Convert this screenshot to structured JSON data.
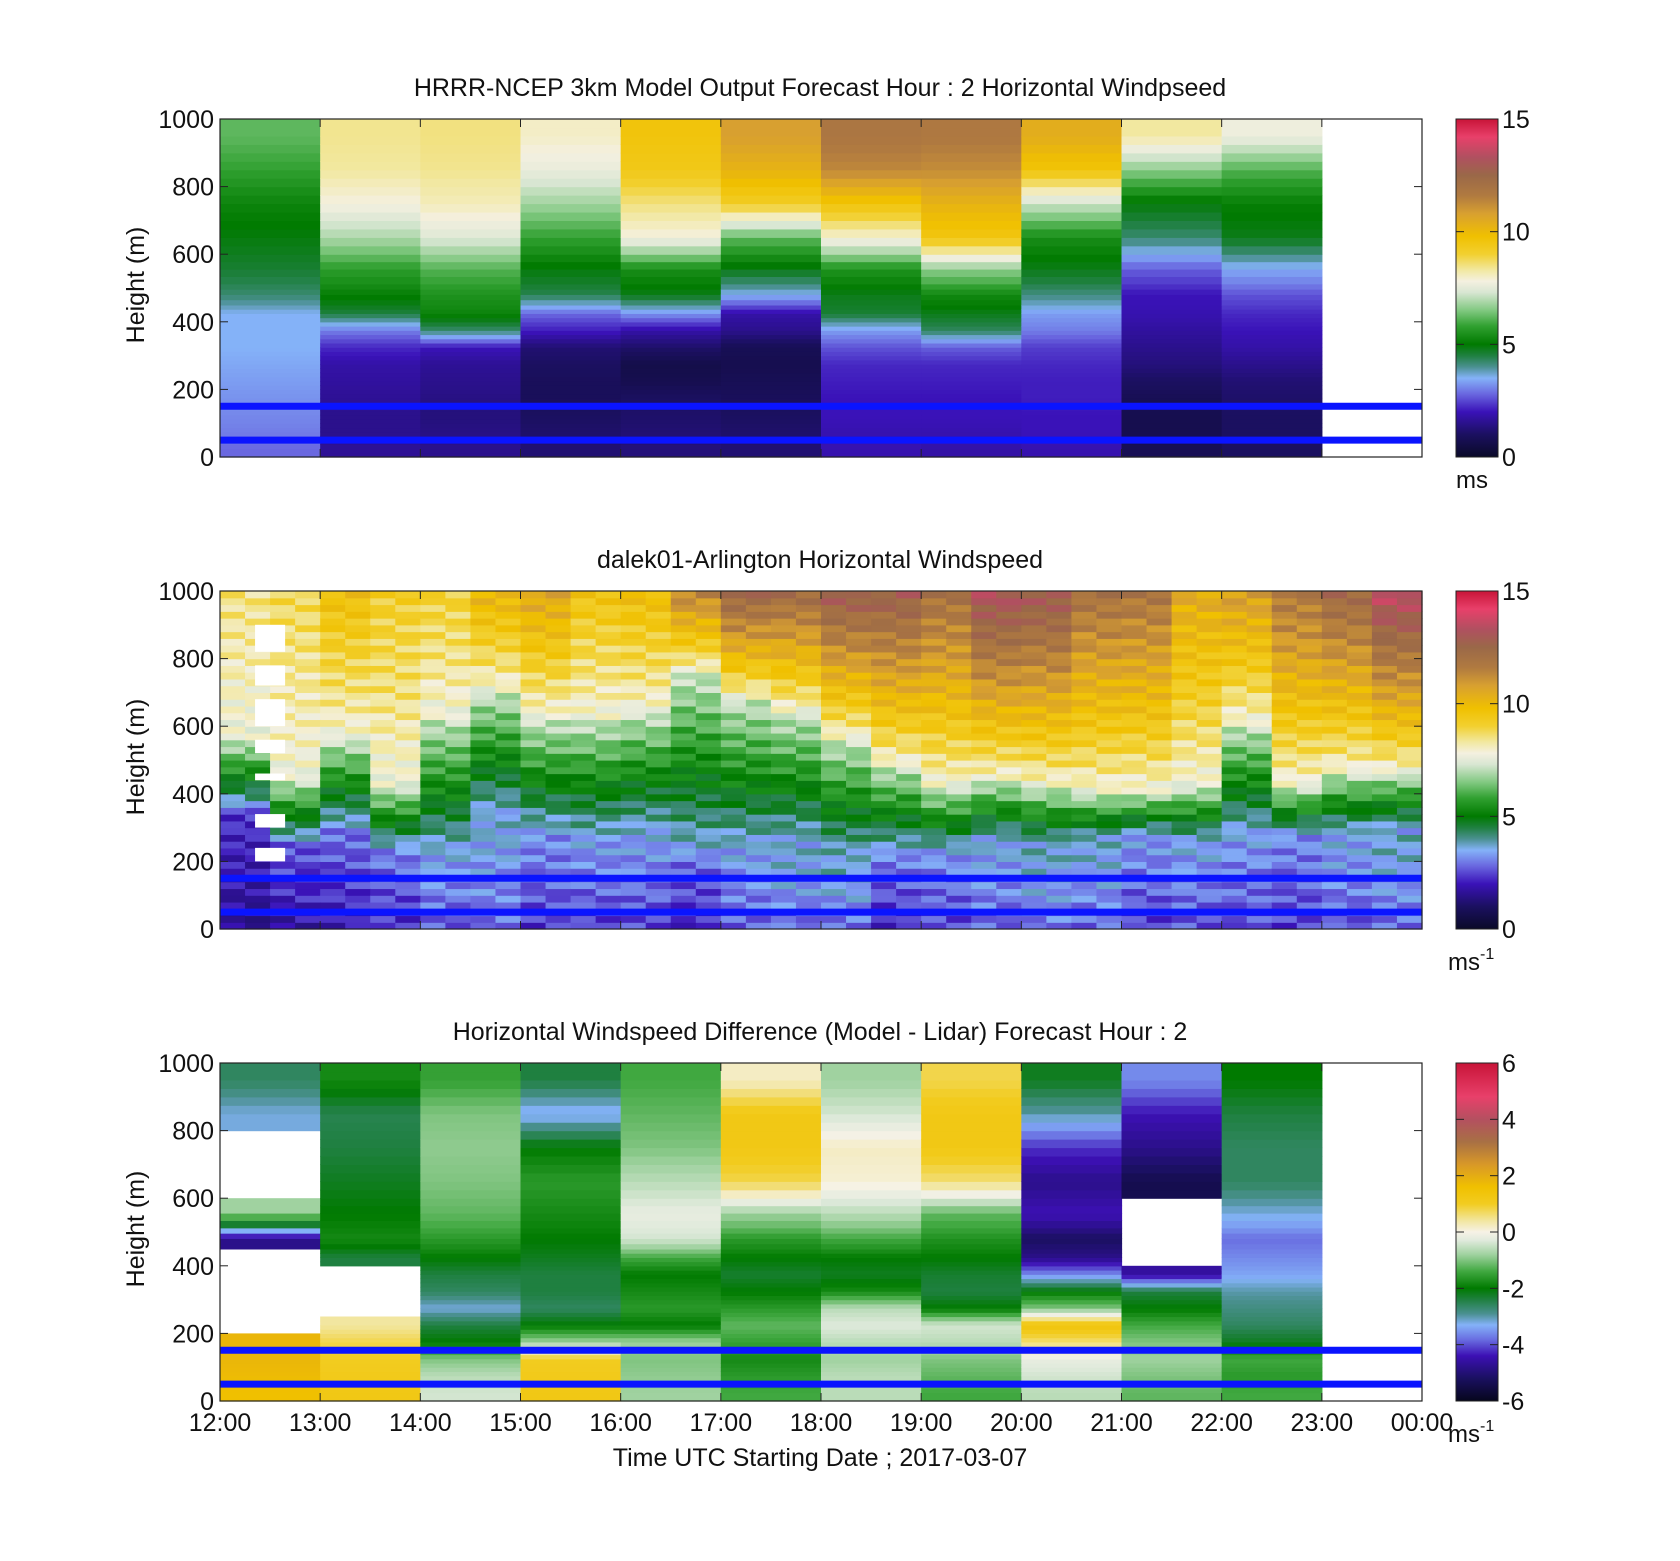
{
  "chart_data": [
    {
      "type": "heatmap",
      "title": "HRRR-NCEP 3km Model Output   Forecast Hour : 2 Horizontal Windpseed",
      "ylabel": "Height (m)",
      "ylim": [
        0,
        1000
      ],
      "yticks": [
        "0",
        "200",
        "400",
        "600",
        "800",
        "1000"
      ],
      "x_hours": [
        "12:00",
        "13:00",
        "14:00",
        "15:00",
        "16:00",
        "17:00",
        "18:00",
        "19:00",
        "20:00",
        "21:00",
        "22:00",
        "23:00",
        "00:00"
      ],
      "show_x_tick_labels": false,
      "colorbar": {
        "min": 0,
        "max": 15,
        "ticks": [
          "0",
          "5",
          "10",
          "15"
        ],
        "unit": "ms",
        "unit_exp": ""
      },
      "z_levels": [
        25,
        75,
        125,
        175,
        225,
        275,
        325,
        375,
        425,
        475,
        550,
        650,
        750,
        850,
        950
      ],
      "columns": [
        {
          "start": "12:00",
          "end": "13:00",
          "values": [
            2.8,
            3.0,
            3.1,
            3.2,
            3.3,
            3.4,
            3.5,
            3.5,
            3.5,
            4.2,
            4.6,
            4.9,
            5.2,
            5.8,
            6.2
          ]
        },
        {
          "start": "13:00",
          "end": "14:00",
          "values": [
            1.6,
            1.5,
            1.5,
            1.6,
            1.7,
            1.8,
            2.2,
            3.0,
            4.5,
            5.1,
            5.7,
            6.9,
            7.8,
            8.3,
            8.4
          ]
        },
        {
          "start": "14:00",
          "end": "15:00",
          "values": [
            1.5,
            1.4,
            1.3,
            1.4,
            1.5,
            1.6,
            2.0,
            4.2,
            5.2,
            5.5,
            6.1,
            7.4,
            8.1,
            8.4,
            8.5
          ]
        },
        {
          "start": "15:00",
          "end": "16:00",
          "values": [
            1.2,
            1.1,
            1.0,
            0.9,
            0.9,
            1.0,
            1.2,
            2.1,
            2.8,
            4.4,
            4.9,
            5.8,
            6.8,
            7.6,
            8.0
          ]
        },
        {
          "start": "16:00",
          "end": "17:00",
          "values": [
            1.3,
            1.2,
            1.1,
            1.0,
            0.7,
            0.6,
            1.1,
            1.8,
            3.2,
            4.8,
            5.4,
            7.8,
            8.5,
            9.4,
            9.6
          ]
        },
        {
          "start": "17:00",
          "end": "18:00",
          "values": [
            1.2,
            1.1,
            1.0,
            0.9,
            0.8,
            0.7,
            0.8,
            1.5,
            1.8,
            3.5,
            4.8,
            6.2,
            9.2,
            10.2,
            10.8
          ]
        },
        {
          "start": "18:00",
          "end": "19:00",
          "values": [
            1.9,
            1.9,
            2.0,
            2.0,
            2.1,
            2.2,
            2.6,
            3.3,
            4.6,
            4.8,
            5.5,
            7.9,
            9.6,
            11.3,
            11.8
          ]
        },
        {
          "start": "19:00",
          "end": "20:00",
          "values": [
            1.8,
            1.9,
            2.0,
            2.0,
            2.1,
            2.2,
            2.7,
            4.3,
            4.8,
            5.3,
            6.6,
            9.5,
            10.2,
            11.2,
            11.7
          ]
        },
        {
          "start": "20:00",
          "end": "21:00",
          "values": [
            1.9,
            2.0,
            2.0,
            2.1,
            2.1,
            2.2,
            2.4,
            3.0,
            3.3,
            4.1,
            4.8,
            5.4,
            7.2,
            9.6,
            10.4
          ]
        },
        {
          "start": "21:00",
          "end": "22:00",
          "values": [
            0.8,
            0.7,
            0.7,
            0.8,
            1.0,
            1.3,
            1.5,
            1.7,
            1.9,
            2.0,
            2.7,
            4.2,
            4.9,
            6.6,
            8.3
          ]
        },
        {
          "start": "22:00",
          "end": "23:00",
          "values": [
            1.0,
            1.0,
            1.0,
            1.1,
            1.2,
            1.5,
            1.8,
            2.0,
            2.2,
            2.6,
            3.4,
            4.8,
            5.1,
            6.1,
            7.7
          ]
        }
      ],
      "overlay_lines_m": [
        150,
        50
      ]
    },
    {
      "type": "heatmap",
      "title": "dalek01-Arlington  Horizontal Windspeed",
      "ylabel": "Height (m)",
      "ylim": [
        0,
        1000
      ],
      "yticks": [
        "0",
        "200",
        "400",
        "600",
        "800",
        "1000"
      ],
      "x_hours": [
        "12:00",
        "13:00",
        "14:00",
        "15:00",
        "16:00",
        "17:00",
        "18:00",
        "19:00",
        "20:00",
        "21:00",
        "22:00",
        "23:00",
        "00:00"
      ],
      "show_x_tick_labels": false,
      "colorbar": {
        "min": 0,
        "max": 15,
        "ticks": [
          "0",
          "5",
          "10",
          "15"
        ],
        "unit": "ms",
        "unit_exp": "-1"
      },
      "profiles": {
        "hours": [
          12.0,
          12.5,
          13.0,
          13.5,
          14.0,
          14.5,
          15.0,
          15.5,
          16.0,
          16.5,
          17.0,
          17.5,
          18.0,
          18.5,
          19.0,
          19.5,
          20.0,
          20.5,
          21.0,
          21.5,
          22.0,
          22.5,
          23.0,
          23.5
        ],
        "transition_top_m": [
          360,
          260,
          300,
          240,
          220,
          330,
          280,
          260,
          280,
          220,
          230,
          240,
          200,
          230,
          230,
          260,
          240,
          260,
          280,
          260,
          280,
          280,
          280,
          290
        ],
        "green_top_m": [
          560,
          440,
          560,
          420,
          620,
          700,
          620,
          620,
          640,
          760,
          680,
          640,
          560,
          480,
          420,
          440,
          420,
          400,
          400,
          420,
          600,
          420,
          460,
          460
        ],
        "jet_speed_ms": [
          8.5,
          8.8,
          9.8,
          9.2,
          9.1,
          10.2,
          10.6,
          9.6,
          9.9,
          11.5,
          12.6,
          12.3,
          12.9,
          12.8,
          12.1,
          13.3,
          13.0,
          12.0,
          11.9,
          10.5,
          10.9,
          11.8,
          12.4,
          13.6
        ],
        "surface_speed_ms": [
          1.5,
          1.8,
          2.0,
          2.2,
          2.6,
          2.8,
          2.3,
          2.4,
          2.5,
          2.1,
          2.6,
          2.8,
          2.9,
          2.2,
          2.4,
          2.7,
          2.9,
          2.8,
          2.4,
          2.6,
          2.5,
          2.3,
          2.6,
          2.9
        ]
      },
      "missing_data_region": {
        "start": "12:00",
        "end": "13:00",
        "description_levels_m": [
          200,
          900
        ]
      },
      "overlay_lines_m": [
        150,
        50
      ]
    },
    {
      "type": "heatmap",
      "title": "Horizontal Windspeed Difference (Model - Lidar) Forecast Hour : 2",
      "ylabel": "Height (m)",
      "xlabel": "Time UTC  Starting Date ; 2017-03-07",
      "ylim": [
        0,
        1000
      ],
      "yticks": [
        "0",
        "200",
        "400",
        "600",
        "800",
        "1000"
      ],
      "x_hours": [
        "12:00",
        "13:00",
        "14:00",
        "15:00",
        "16:00",
        "17:00",
        "18:00",
        "19:00",
        "20:00",
        "21:00",
        "22:00",
        "23:00",
        "00:00"
      ],
      "show_x_tick_labels": true,
      "colorbar": {
        "min": -6,
        "max": 6,
        "ticks": [
          "-6",
          "-4",
          "-2",
          "0",
          "2",
          "4",
          "6"
        ],
        "unit": "ms",
        "unit_exp": "-1"
      },
      "z_levels": [
        25,
        75,
        125,
        175,
        225,
        275,
        325,
        375,
        425,
        475,
        550,
        650,
        750,
        850,
        950
      ],
      "columns": [
        {
          "start": "12:00",
          "end": "13:00",
          "values": [
            1.6,
            1.7,
            1.8,
            1.8,
            null,
            null,
            null,
            null,
            null,
            -4.8,
            -0.8,
            null,
            null,
            -3.2,
            -2.6
          ]
        },
        {
          "start": "13:00",
          "end": "14:00",
          "values": [
            1.2,
            1.1,
            1.0,
            0.8,
            0.4,
            null,
            null,
            null,
            -2.4,
            -1.8,
            -2.0,
            -2.2,
            -2.4,
            -2.5,
            -1.8
          ]
        },
        {
          "start": "14:00",
          "end": "15:00",
          "values": [
            -0.4,
            -0.6,
            -1.0,
            -2.0,
            -2.4,
            -3.2,
            -2.6,
            -2.4,
            -2.0,
            -1.6,
            -1.2,
            -1.0,
            -0.9,
            -1.0,
            -1.5
          ]
        },
        {
          "start": "15:00",
          "end": "16:00",
          "values": [
            1.2,
            1.1,
            1.0,
            -0.8,
            -2.0,
            -2.6,
            -2.4,
            -2.4,
            -2.2,
            -2.0,
            -1.8,
            -1.6,
            -2.0,
            -3.4,
            -2.4
          ]
        },
        {
          "start": "16:00",
          "end": "17:00",
          "values": [
            -0.8,
            -0.9,
            -1.0,
            -0.8,
            -2.0,
            -1.6,
            -1.8,
            -2.0,
            -1.4,
            -0.4,
            -0.2,
            -0.6,
            -1.0,
            -1.2,
            -1.4
          ]
        },
        {
          "start": "17:00",
          "end": "18:00",
          "values": [
            -1.4,
            -1.6,
            -1.8,
            -1.5,
            -1.2,
            -1.6,
            -2.0,
            -2.3,
            -2.0,
            -1.6,
            -0.8,
            0.8,
            1.2,
            1.2,
            0.2
          ]
        },
        {
          "start": "18:00",
          "end": "19:00",
          "values": [
            -0.6,
            -0.6,
            -0.8,
            -0.6,
            -0.3,
            -0.6,
            -1.8,
            -2.2,
            -2.0,
            -1.4,
            -0.6,
            0.1,
            0.2,
            -0.4,
            -0.8
          ]
        },
        {
          "start": "19:00",
          "end": "20:00",
          "values": [
            -1.4,
            -1.2,
            -1.0,
            -0.6,
            -0.4,
            -2.0,
            -2.4,
            -2.3,
            -2.0,
            -1.7,
            -1.2,
            0.6,
            1.2,
            1.2,
            0.8
          ]
        },
        {
          "start": "20:00",
          "end": "21:00",
          "values": [
            -0.6,
            -0.4,
            -0.2,
            0.6,
            1.4,
            -1.0,
            -2.0,
            -3.6,
            -4.8,
            -5.2,
            -4.4,
            -4.8,
            -4.2,
            -3.0,
            -2.2
          ]
        },
        {
          "start": "21:00",
          "end": "22:00",
          "values": [
            -1.2,
            -1.0,
            -0.8,
            -1.0,
            -1.4,
            -2.0,
            -2.4,
            -4.6,
            null,
            null,
            null,
            -5.4,
            -4.8,
            -4.4,
            -3.6
          ]
        },
        {
          "start": "22:00",
          "end": "23:00",
          "values": [
            -1.4,
            -1.6,
            -1.4,
            -2.2,
            -2.6,
            -2.8,
            -3.0,
            -3.4,
            -3.6,
            -3.8,
            -3.2,
            -2.6,
            -2.6,
            -2.4,
            -2.0
          ]
        }
      ],
      "overlay_lines_m": [
        150,
        50
      ]
    }
  ]
}
